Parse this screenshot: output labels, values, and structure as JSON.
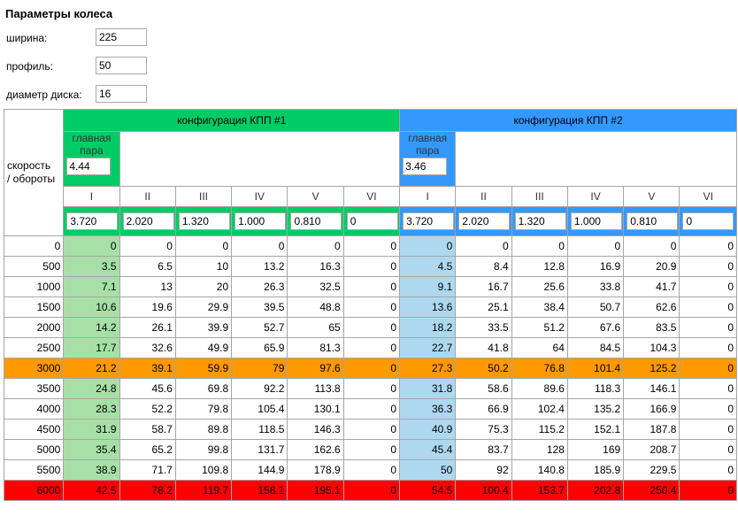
{
  "params": {
    "title": "Параметры колеса",
    "width_label": "ширина:",
    "width_value": "225",
    "profile_label": "профиль:",
    "profile_value": "50",
    "diameter_label": "диаметр диска:",
    "diameter_value": "16"
  },
  "table": {
    "corner_line1": "скорость",
    "corner_line2": "/ обороты",
    "config1_title": "конфигурация КПП #1",
    "config2_title": "конфигурация КПП #2",
    "main_pair_line1": "главная",
    "main_pair_line2": "пара",
    "config1_main_pair": "4.44",
    "config2_main_pair": "3.46",
    "gears": [
      "I",
      "II",
      "III",
      "IV",
      "V",
      "VI"
    ],
    "config1_ratios": [
      "3.720",
      "2.020",
      "1.320",
      "1.000",
      "0.810",
      "0"
    ],
    "config2_ratios": [
      "3.720",
      "2.020",
      "1.320",
      "1.000",
      "0.810",
      "0"
    ],
    "rows": [
      {
        "rpm": "0",
        "c1": [
          "0",
          "0",
          "0",
          "0",
          "0",
          "0"
        ],
        "c2": [
          "0",
          "0",
          "0",
          "0",
          "0",
          "0"
        ]
      },
      {
        "rpm": "500",
        "c1": [
          "3.5",
          "6.5",
          "10",
          "13.2",
          "16.3",
          "0"
        ],
        "c2": [
          "4.5",
          "8.4",
          "12.8",
          "16.9",
          "20.9",
          "0"
        ]
      },
      {
        "rpm": "1000",
        "c1": [
          "7.1",
          "13",
          "20",
          "26.3",
          "32.5",
          "0"
        ],
        "c2": [
          "9.1",
          "16.7",
          "25.6",
          "33.8",
          "41.7",
          "0"
        ]
      },
      {
        "rpm": "1500",
        "c1": [
          "10.6",
          "19.6",
          "29.9",
          "39.5",
          "48.8",
          "0"
        ],
        "c2": [
          "13.6",
          "25.1",
          "38.4",
          "50.7",
          "62.6",
          "0"
        ]
      },
      {
        "rpm": "2000",
        "c1": [
          "14.2",
          "26.1",
          "39.9",
          "52.7",
          "65",
          "0"
        ],
        "c2": [
          "18.2",
          "33.5",
          "51.2",
          "67.6",
          "83.5",
          "0"
        ]
      },
      {
        "rpm": "2500",
        "c1": [
          "17.7",
          "32.6",
          "49.9",
          "65.9",
          "81.3",
          "0"
        ],
        "c2": [
          "22.7",
          "41.8",
          "64",
          "84.5",
          "104.3",
          "0"
        ]
      },
      {
        "rpm": "3000",
        "c1": [
          "21.2",
          "39.1",
          "59.9",
          "79",
          "97.6",
          "0"
        ],
        "c2": [
          "27.3",
          "50.2",
          "76.8",
          "101.4",
          "125.2",
          "0"
        ]
      },
      {
        "rpm": "3500",
        "c1": [
          "24.8",
          "45.6",
          "69.8",
          "92.2",
          "113.8",
          "0"
        ],
        "c2": [
          "31.8",
          "58.6",
          "89.6",
          "118.3",
          "146.1",
          "0"
        ]
      },
      {
        "rpm": "4000",
        "c1": [
          "28.3",
          "52.2",
          "79.8",
          "105.4",
          "130.1",
          "0"
        ],
        "c2": [
          "36.3",
          "66.9",
          "102.4",
          "135.2",
          "166.9",
          "0"
        ]
      },
      {
        "rpm": "4500",
        "c1": [
          "31.9",
          "58.7",
          "89.8",
          "118.5",
          "146.3",
          "0"
        ],
        "c2": [
          "40.9",
          "75.3",
          "115.2",
          "152.1",
          "187.8",
          "0"
        ]
      },
      {
        "rpm": "5000",
        "c1": [
          "35.4",
          "65.2",
          "99.8",
          "131.7",
          "162.6",
          "0"
        ],
        "c2": [
          "45.4",
          "83.7",
          "128",
          "169",
          "208.7",
          "0"
        ]
      },
      {
        "rpm": "5500",
        "c1": [
          "38.9",
          "71.7",
          "109.8",
          "144.9",
          "178.9",
          "0"
        ],
        "c2": [
          "50",
          "92",
          "140.8",
          "185.9",
          "229.5",
          "0"
        ]
      },
      {
        "rpm": "6000",
        "c1": [
          "42.5",
          "78.2",
          "119.7",
          "158.1",
          "195.1",
          "0"
        ],
        "c2": [
          "54.5",
          "100.4",
          "153.7",
          "202.8",
          "250.4",
          "0"
        ]
      }
    ],
    "highlight_colors": {
      "config1_header": "#00cc66",
      "config2_header": "#3399ff",
      "first_gear_c1": "#a6e0a6",
      "first_gear_c2": "#add8f0",
      "row_3000": "#ff9900",
      "row_6000": "#ff0000"
    }
  }
}
